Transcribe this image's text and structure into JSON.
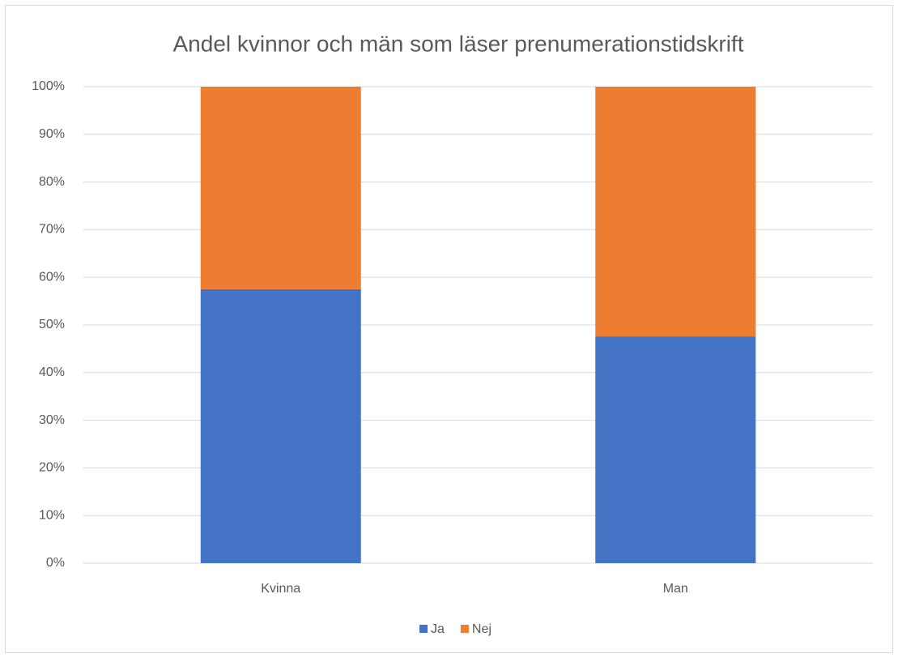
{
  "chart_data": {
    "type": "stacked_bar",
    "title": "Andel kvinnor och män som läser prenumerationstidskrift",
    "categories": [
      "Kvinna",
      "Man"
    ],
    "series": [
      {
        "name": "Ja",
        "color": "#4472c4",
        "values": [
          57.5,
          47.6
        ]
      },
      {
        "name": "Nej",
        "color": "#ed7d31",
        "values": [
          42.5,
          52.4
        ]
      }
    ],
    "ylim": [
      0,
      100
    ],
    "yticks": [
      {
        "value": 0,
        "label": "0%"
      },
      {
        "value": 10,
        "label": "10%"
      },
      {
        "value": 20,
        "label": "20%"
      },
      {
        "value": 30,
        "label": "30%"
      },
      {
        "value": 40,
        "label": "40%"
      },
      {
        "value": 50,
        "label": "50%"
      },
      {
        "value": 60,
        "label": "60%"
      },
      {
        "value": 70,
        "label": "70%"
      },
      {
        "value": 80,
        "label": "80%"
      },
      {
        "value": 90,
        "label": "90%"
      },
      {
        "value": 100,
        "label": "100%"
      }
    ],
    "grid": true,
    "legend": "bottom"
  }
}
